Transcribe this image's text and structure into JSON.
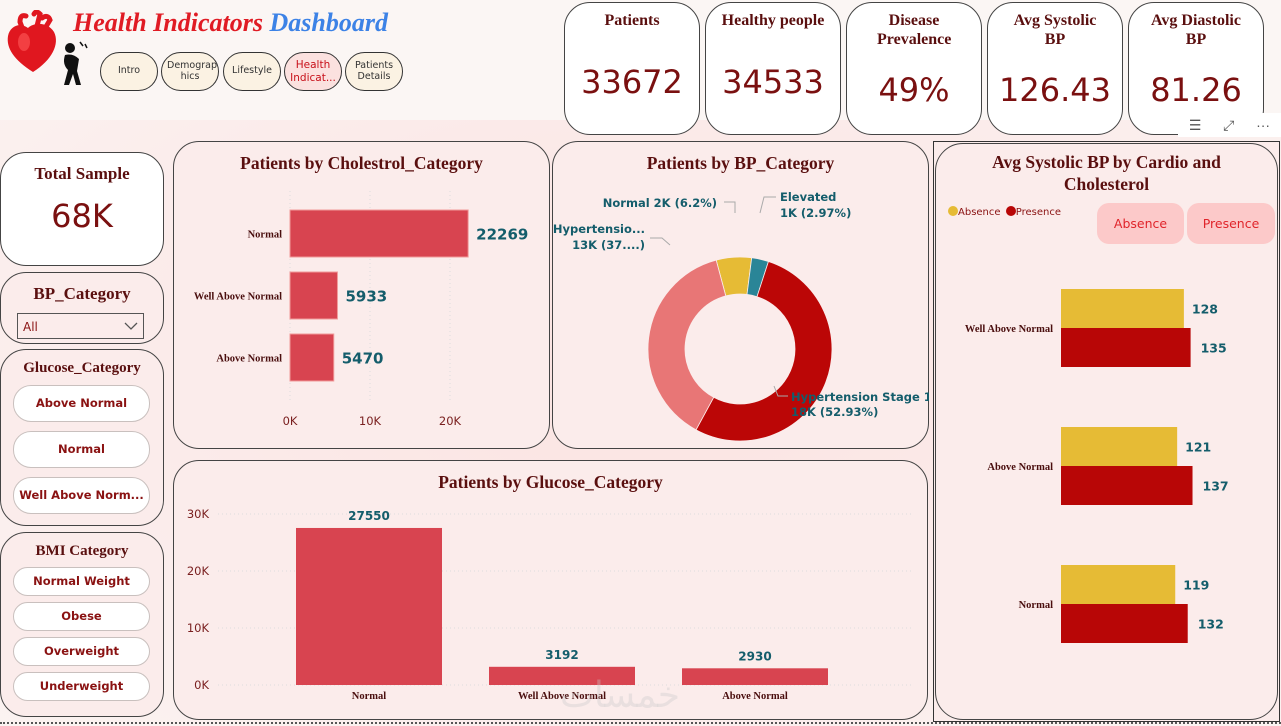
{
  "header": {
    "title_part1": "Health Indicators",
    "title_part2": "Dashboard",
    "icons": [
      "heart-icon",
      "chest-pain-person-icon"
    ],
    "nav": [
      {
        "label": "Intro",
        "active": false
      },
      {
        "label": "Demographics",
        "display": "Demograp hics",
        "active": false
      },
      {
        "label": "Lifestyle",
        "active": false
      },
      {
        "label": "Health Indicators",
        "display": "Health Indicat...",
        "active": true
      },
      {
        "label": "Patients Details",
        "active": false
      }
    ]
  },
  "kpis": [
    {
      "label": "Patients",
      "value": "33672"
    },
    {
      "label": "Healthy people",
      "value": "34533"
    },
    {
      "label": "Disease Prevalence",
      "value": "49%"
    },
    {
      "label": "Avg Systolic BP",
      "value": "126.43"
    },
    {
      "label": "Avg Diastolic BP",
      "value": "81.26"
    }
  ],
  "visual_toolbar": {
    "icons": [
      "filter-icon",
      "focus-mode-icon",
      "more-options-icon"
    ],
    "filter": "☰",
    "focus": "⤢",
    "more": "···"
  },
  "sidebar": {
    "total_sample": {
      "label": "Total Sample",
      "value": "68K"
    },
    "bp_category": {
      "label": "BP_Category",
      "selected": "All"
    },
    "glucose_category": {
      "label": "Glucose_Category",
      "options": [
        "Above Normal",
        "Normal",
        "Well Above Norm..."
      ]
    },
    "bmi_category": {
      "label": "BMI Category",
      "options": [
        "Normal Weight",
        "Obese",
        "Overweight",
        "Underweight"
      ]
    }
  },
  "chart_data": [
    {
      "id": "cholesterol",
      "type": "bar",
      "orientation": "horizontal",
      "title": "Patients by Cholestrol_Category",
      "categories": [
        "Normal",
        "Well Above Normal",
        "Above Normal"
      ],
      "values": [
        22269,
        5933,
        5470
      ],
      "xlim": [
        0,
        28000
      ],
      "xticks": [
        0,
        10000,
        20000
      ],
      "xtick_labels": [
        "0K",
        "10K",
        "20K"
      ],
      "color": "#d84450",
      "grid": true
    },
    {
      "id": "bp_category",
      "type": "pie",
      "donut": true,
      "title": "Patients by BP_Category",
      "slices": [
        {
          "label": "Normal",
          "value": 6.2,
          "display": "Normal 2K (6.2%)",
          "color": "#e6bb35"
        },
        {
          "label": "Elevated",
          "value": 2.97,
          "display1": "Elevated",
          "display2": "1K (2.97%)",
          "color": "#2a8597"
        },
        {
          "label": "Hypertension Stage 1",
          "value": 52.93,
          "display1": "Hypertension Stage 1",
          "display2": "18K (52.93%)",
          "color": "#bb0606"
        },
        {
          "label": "Hypertension Stage 2",
          "value": 37.9,
          "display1": "Hypertensio...",
          "display2": "13K (37....)",
          "color": "#e87676"
        }
      ]
    },
    {
      "id": "glucose",
      "type": "bar",
      "orientation": "vertical",
      "title": "Patients by Glucose_Category",
      "categories": [
        "Normal",
        "Well Above Normal",
        "Above Normal"
      ],
      "values": [
        27550,
        3192,
        2930
      ],
      "ylim": [
        0,
        30000
      ],
      "yticks": [
        0,
        10000,
        20000,
        30000
      ],
      "ytick_labels": [
        "0K",
        "10K",
        "20K",
        "30K"
      ],
      "color": "#d84450",
      "grid": true
    },
    {
      "id": "systolic_by_cardio",
      "type": "bar",
      "orientation": "horizontal",
      "title": "Avg Systolic BP by Cardio and Cholesterol",
      "categories": [
        "Well Above Normal",
        "Above Normal",
        "Normal"
      ],
      "series": [
        {
          "name": "Absence",
          "values": [
            128,
            121,
            119
          ],
          "color": "#e6bb35"
        },
        {
          "name": "Presence",
          "values": [
            135,
            137,
            132
          ],
          "color": "#b80606"
        }
      ],
      "xlim": [
        0,
        140
      ],
      "legend": "top-left",
      "buttons": [
        "Absence",
        "Presence"
      ]
    }
  ],
  "watermark": "خمسات"
}
